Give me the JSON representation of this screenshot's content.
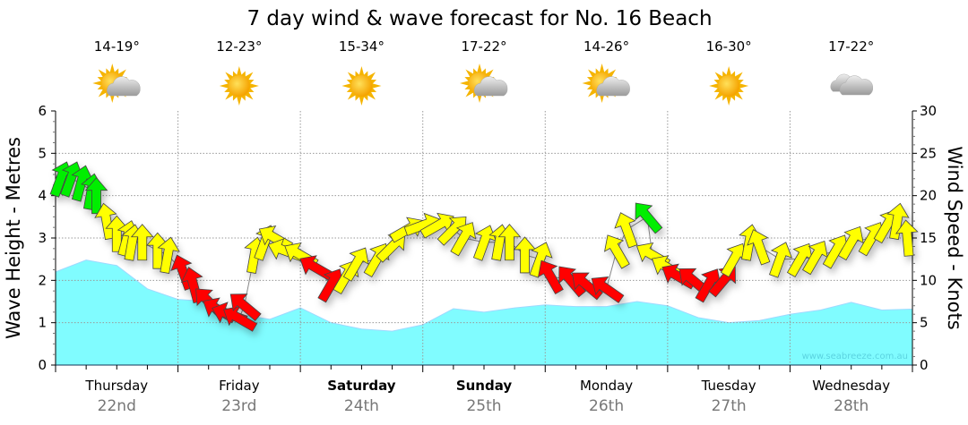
{
  "chart_data": {
    "type": "area",
    "title": "7 day wind & wave forecast for No. 16 Beach",
    "ylabel_left": "Wave Height - Metres",
    "ylabel_right": "Wind Speed - Knots",
    "ylim_left": [
      0,
      6
    ],
    "ylim_right": [
      0,
      30
    ],
    "yticks_left": [
      "0",
      "1",
      "2",
      "3",
      "4",
      "5",
      "6"
    ],
    "yticks_right": [
      "0",
      "5",
      "10",
      "15",
      "20",
      "25",
      "30"
    ],
    "xlim_hours": [
      0,
      168
    ],
    "grid": true,
    "watermark": "www.seabreeze.com.au",
    "days": [
      {
        "day": "Thursday",
        "date": "22nd",
        "temp": "14-19°",
        "icon": "partly-cloudy-icon",
        "bold": false
      },
      {
        "day": "Friday",
        "date": "23rd",
        "temp": "12-23°",
        "icon": "sunny-icon",
        "bold": false
      },
      {
        "day": "Saturday",
        "date": "24th",
        "temp": "15-34°",
        "icon": "sunny-icon",
        "bold": true
      },
      {
        "day": "Sunday",
        "date": "25th",
        "temp": "17-22°",
        "icon": "partly-cloudy-icon",
        "bold": true
      },
      {
        "day": "Monday",
        "date": "26th",
        "temp": "14-26°",
        "icon": "partly-cloudy-icon",
        "bold": false
      },
      {
        "day": "Tuesday",
        "date": "27th",
        "temp": "16-30°",
        "icon": "sunny-icon",
        "bold": false
      },
      {
        "day": "Wednesday",
        "date": "28th",
        "temp": "17-22°",
        "icon": "cloudy-icon",
        "bold": false
      }
    ],
    "wave_series": {
      "name": "Wave Height (m)",
      "color": "#80fcff",
      "hours": [
        0,
        6,
        12,
        18,
        24,
        30,
        36,
        42,
        48,
        54,
        60,
        66,
        72,
        78,
        84,
        90,
        96,
        102,
        108,
        114,
        120,
        126,
        132,
        138,
        144,
        150,
        156,
        162,
        168
      ],
      "values": [
        2.2,
        2.48,
        2.35,
        1.8,
        1.55,
        1.5,
        1.2,
        1.08,
        1.35,
        1.0,
        0.85,
        0.8,
        0.95,
        1.33,
        1.25,
        1.35,
        1.42,
        1.38,
        1.38,
        1.5,
        1.4,
        1.12,
        1.0,
        1.05,
        1.2,
        1.3,
        1.48,
        1.3,
        1.32
      ]
    },
    "wind_series": {
      "name": "Wind Speed (knots)",
      "colors": {
        "strong": "#00ee00",
        "moderate": "#ffff00",
        "light": "#ff0000"
      },
      "points": [
        {
          "h": 1,
          "kt": 22,
          "dir": 20,
          "c": "strong"
        },
        {
          "h": 3,
          "kt": 22,
          "dir": 20,
          "c": "strong"
        },
        {
          "h": 5,
          "kt": 21.5,
          "dir": 15,
          "c": "strong"
        },
        {
          "h": 7,
          "kt": 20.5,
          "dir": 10,
          "c": "strong"
        },
        {
          "h": 8,
          "kt": 20,
          "dir": 0,
          "c": "strong"
        },
        {
          "h": 10,
          "kt": 17,
          "dir": -10,
          "c": "moderate"
        },
        {
          "h": 12,
          "kt": 15.5,
          "dir": 0,
          "c": "moderate"
        },
        {
          "h": 14,
          "kt": 15,
          "dir": 15,
          "c": "moderate"
        },
        {
          "h": 15,
          "kt": 14.5,
          "dir": 10,
          "c": "moderate"
        },
        {
          "h": 17,
          "kt": 14.5,
          "dir": 0,
          "c": "moderate"
        },
        {
          "h": 20,
          "kt": 13.5,
          "dir": 0,
          "c": "moderate"
        },
        {
          "h": 22,
          "kt": 13,
          "dir": 10,
          "c": "moderate"
        },
        {
          "h": 25,
          "kt": 11,
          "dir": -20,
          "c": "light"
        },
        {
          "h": 27,
          "kt": 9.5,
          "dir": -15,
          "c": "light"
        },
        {
          "h": 30,
          "kt": 7.5,
          "dir": -45,
          "c": "light"
        },
        {
          "h": 32,
          "kt": 6.5,
          "dir": -60,
          "c": "light"
        },
        {
          "h": 34,
          "kt": 6,
          "dir": -70,
          "c": "light"
        },
        {
          "h": 36,
          "kt": 5.5,
          "dir": -60,
          "c": "light"
        },
        {
          "h": 37,
          "kt": 7,
          "dir": -50,
          "c": "light"
        },
        {
          "h": 39,
          "kt": 13,
          "dir": 10,
          "c": "moderate"
        },
        {
          "h": 41,
          "kt": 14.5,
          "dir": 20,
          "c": "moderate"
        },
        {
          "h": 43,
          "kt": 15,
          "dir": -60,
          "c": "moderate"
        },
        {
          "h": 45,
          "kt": 13.5,
          "dir": -70,
          "c": "moderate"
        },
        {
          "h": 48,
          "kt": 13,
          "dir": -60,
          "c": "moderate"
        },
        {
          "h": 51,
          "kt": 11.5,
          "dir": -60,
          "c": "light"
        },
        {
          "h": 54,
          "kt": 9.5,
          "dir": 30,
          "c": "light"
        },
        {
          "h": 57,
          "kt": 10.5,
          "dir": 30,
          "c": "moderate"
        },
        {
          "h": 59,
          "kt": 12,
          "dir": 30,
          "c": "moderate"
        },
        {
          "h": 63,
          "kt": 12.5,
          "dir": 30,
          "c": "moderate"
        },
        {
          "h": 66,
          "kt": 14,
          "dir": 45,
          "c": "moderate"
        },
        {
          "h": 69,
          "kt": 16,
          "dir": 60,
          "c": "moderate"
        },
        {
          "h": 72,
          "kt": 16.5,
          "dir": 70,
          "c": "moderate"
        },
        {
          "h": 75,
          "kt": 16.5,
          "dir": 60,
          "c": "moderate"
        },
        {
          "h": 78,
          "kt": 16,
          "dir": 45,
          "c": "moderate"
        },
        {
          "h": 80,
          "kt": 15,
          "dir": 30,
          "c": "moderate"
        },
        {
          "h": 84,
          "kt": 14.5,
          "dir": 20,
          "c": "moderate"
        },
        {
          "h": 87,
          "kt": 14.5,
          "dir": 10,
          "c": "moderate"
        },
        {
          "h": 89,
          "kt": 14.5,
          "dir": 0,
          "c": "moderate"
        },
        {
          "h": 92,
          "kt": 13,
          "dir": 0,
          "c": "moderate"
        },
        {
          "h": 95,
          "kt": 12.5,
          "dir": 20,
          "c": "moderate"
        },
        {
          "h": 97,
          "kt": 10.5,
          "dir": -30,
          "c": "light"
        },
        {
          "h": 101,
          "kt": 10,
          "dir": -40,
          "c": "light"
        },
        {
          "h": 104,
          "kt": 9.5,
          "dir": -50,
          "c": "light"
        },
        {
          "h": 108,
          "kt": 9,
          "dir": -55,
          "c": "light"
        },
        {
          "h": 110,
          "kt": 13.5,
          "dir": -30,
          "c": "moderate"
        },
        {
          "h": 112,
          "kt": 16,
          "dir": -20,
          "c": "moderate"
        },
        {
          "h": 116,
          "kt": 17.5,
          "dir": -40,
          "c": "strong"
        },
        {
          "h": 117,
          "kt": 13,
          "dir": -60,
          "c": "moderate"
        },
        {
          "h": 120,
          "kt": 11.5,
          "dir": -60,
          "c": "moderate"
        },
        {
          "h": 122,
          "kt": 10.5,
          "dir": -60,
          "c": "light"
        },
        {
          "h": 125,
          "kt": 10,
          "dir": -50,
          "c": "light"
        },
        {
          "h": 128,
          "kt": 9.5,
          "dir": 30,
          "c": "light"
        },
        {
          "h": 131,
          "kt": 10,
          "dir": 40,
          "c": "light"
        },
        {
          "h": 133,
          "kt": 12.5,
          "dir": 30,
          "c": "moderate"
        },
        {
          "h": 136,
          "kt": 14.5,
          "dir": 10,
          "c": "moderate"
        },
        {
          "h": 138,
          "kt": 14,
          "dir": -20,
          "c": "moderate"
        },
        {
          "h": 142,
          "kt": 12.5,
          "dir": 20,
          "c": "moderate"
        },
        {
          "h": 146,
          "kt": 12.5,
          "dir": 30,
          "c": "moderate"
        },
        {
          "h": 149,
          "kt": 12.8,
          "dir": 30,
          "c": "moderate"
        },
        {
          "h": 153,
          "kt": 13.5,
          "dir": 30,
          "c": "moderate"
        },
        {
          "h": 156,
          "kt": 14.5,
          "dir": 30,
          "c": "moderate"
        },
        {
          "h": 160,
          "kt": 15,
          "dir": 30,
          "c": "moderate"
        },
        {
          "h": 163,
          "kt": 16.5,
          "dir": 30,
          "c": "moderate"
        },
        {
          "h": 165,
          "kt": 17,
          "dir": 10,
          "c": "moderate"
        },
        {
          "h": 167,
          "kt": 15,
          "dir": -5,
          "c": "moderate"
        }
      ]
    }
  }
}
